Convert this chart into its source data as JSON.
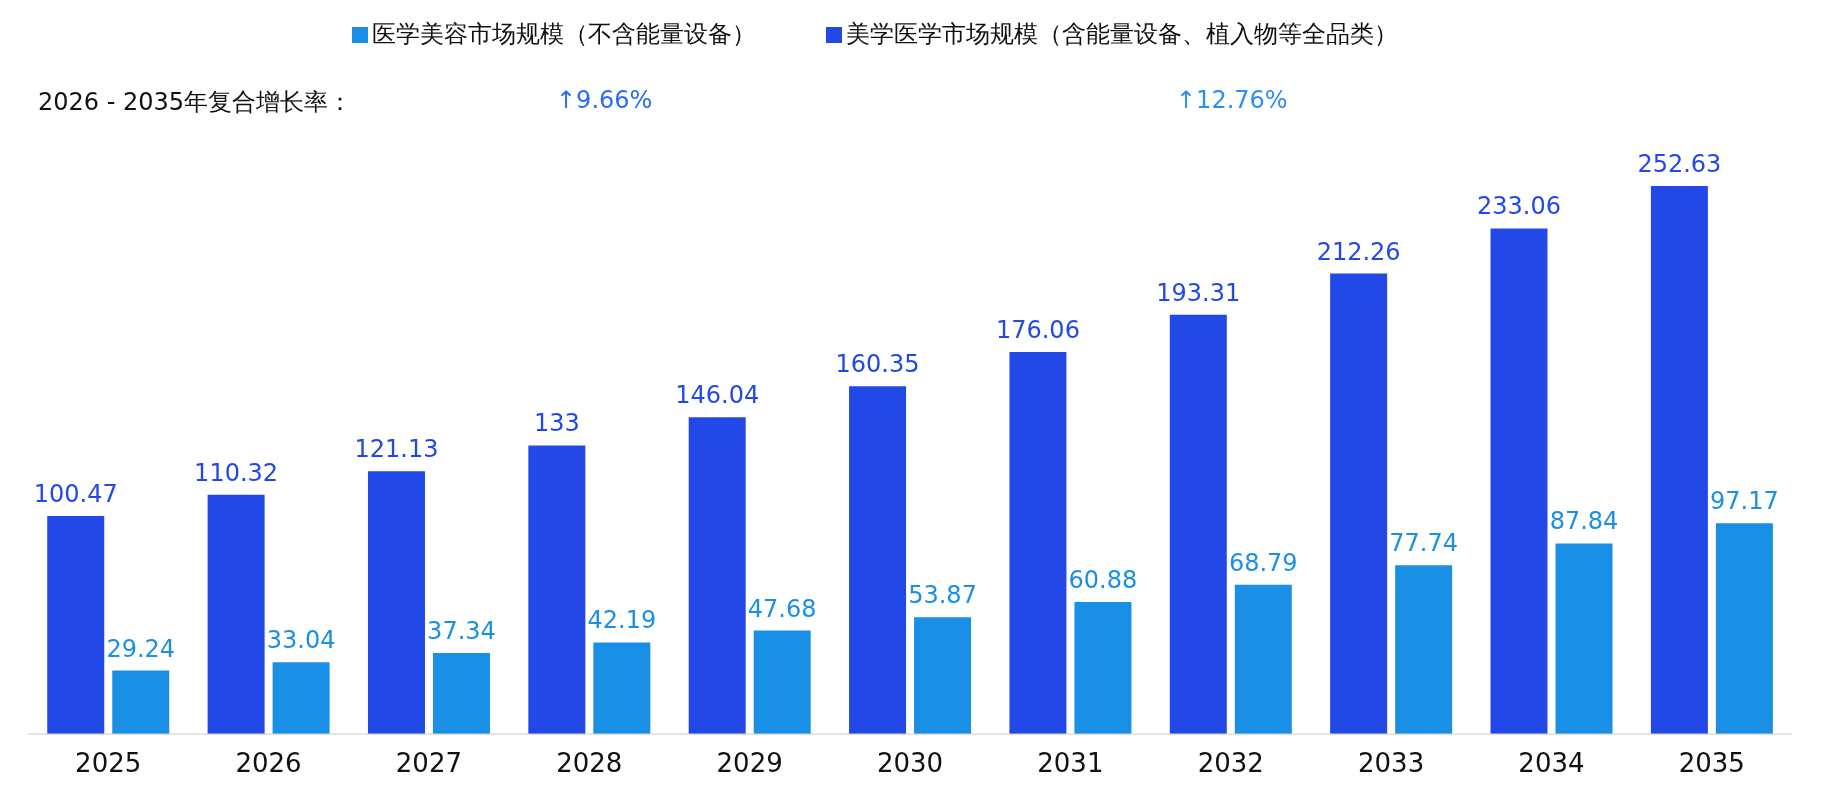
{
  "chart_data": {
    "type": "bar",
    "categories": [
      "2025",
      "2026",
      "2027",
      "2028",
      "2029",
      "2030",
      "2031",
      "2032",
      "2033",
      "2034",
      "2035"
    ],
    "series": [
      {
        "name": "美学医学市场规模（含能量设备、植入物等全品类）",
        "color": "#2348e8",
        "values": [
          100.47,
          110.32,
          121.13,
          133,
          146.04,
          160.35,
          176.06,
          193.31,
          212.26,
          233.06,
          252.63
        ]
      },
      {
        "name": "医学美容市场规模（不含能量设备）",
        "color": "#1a8fe6",
        "values": [
          29.24,
          33.04,
          37.34,
          42.19,
          47.68,
          53.87,
          60.88,
          68.79,
          77.74,
          87.84,
          97.17
        ]
      }
    ],
    "annotations": [
      "2026 - 2035年复合增长率：",
      "↑9.66%",
      "↑12.76%"
    ],
    "data_labels": true,
    "legend": "top",
    "grid": false
  }
}
